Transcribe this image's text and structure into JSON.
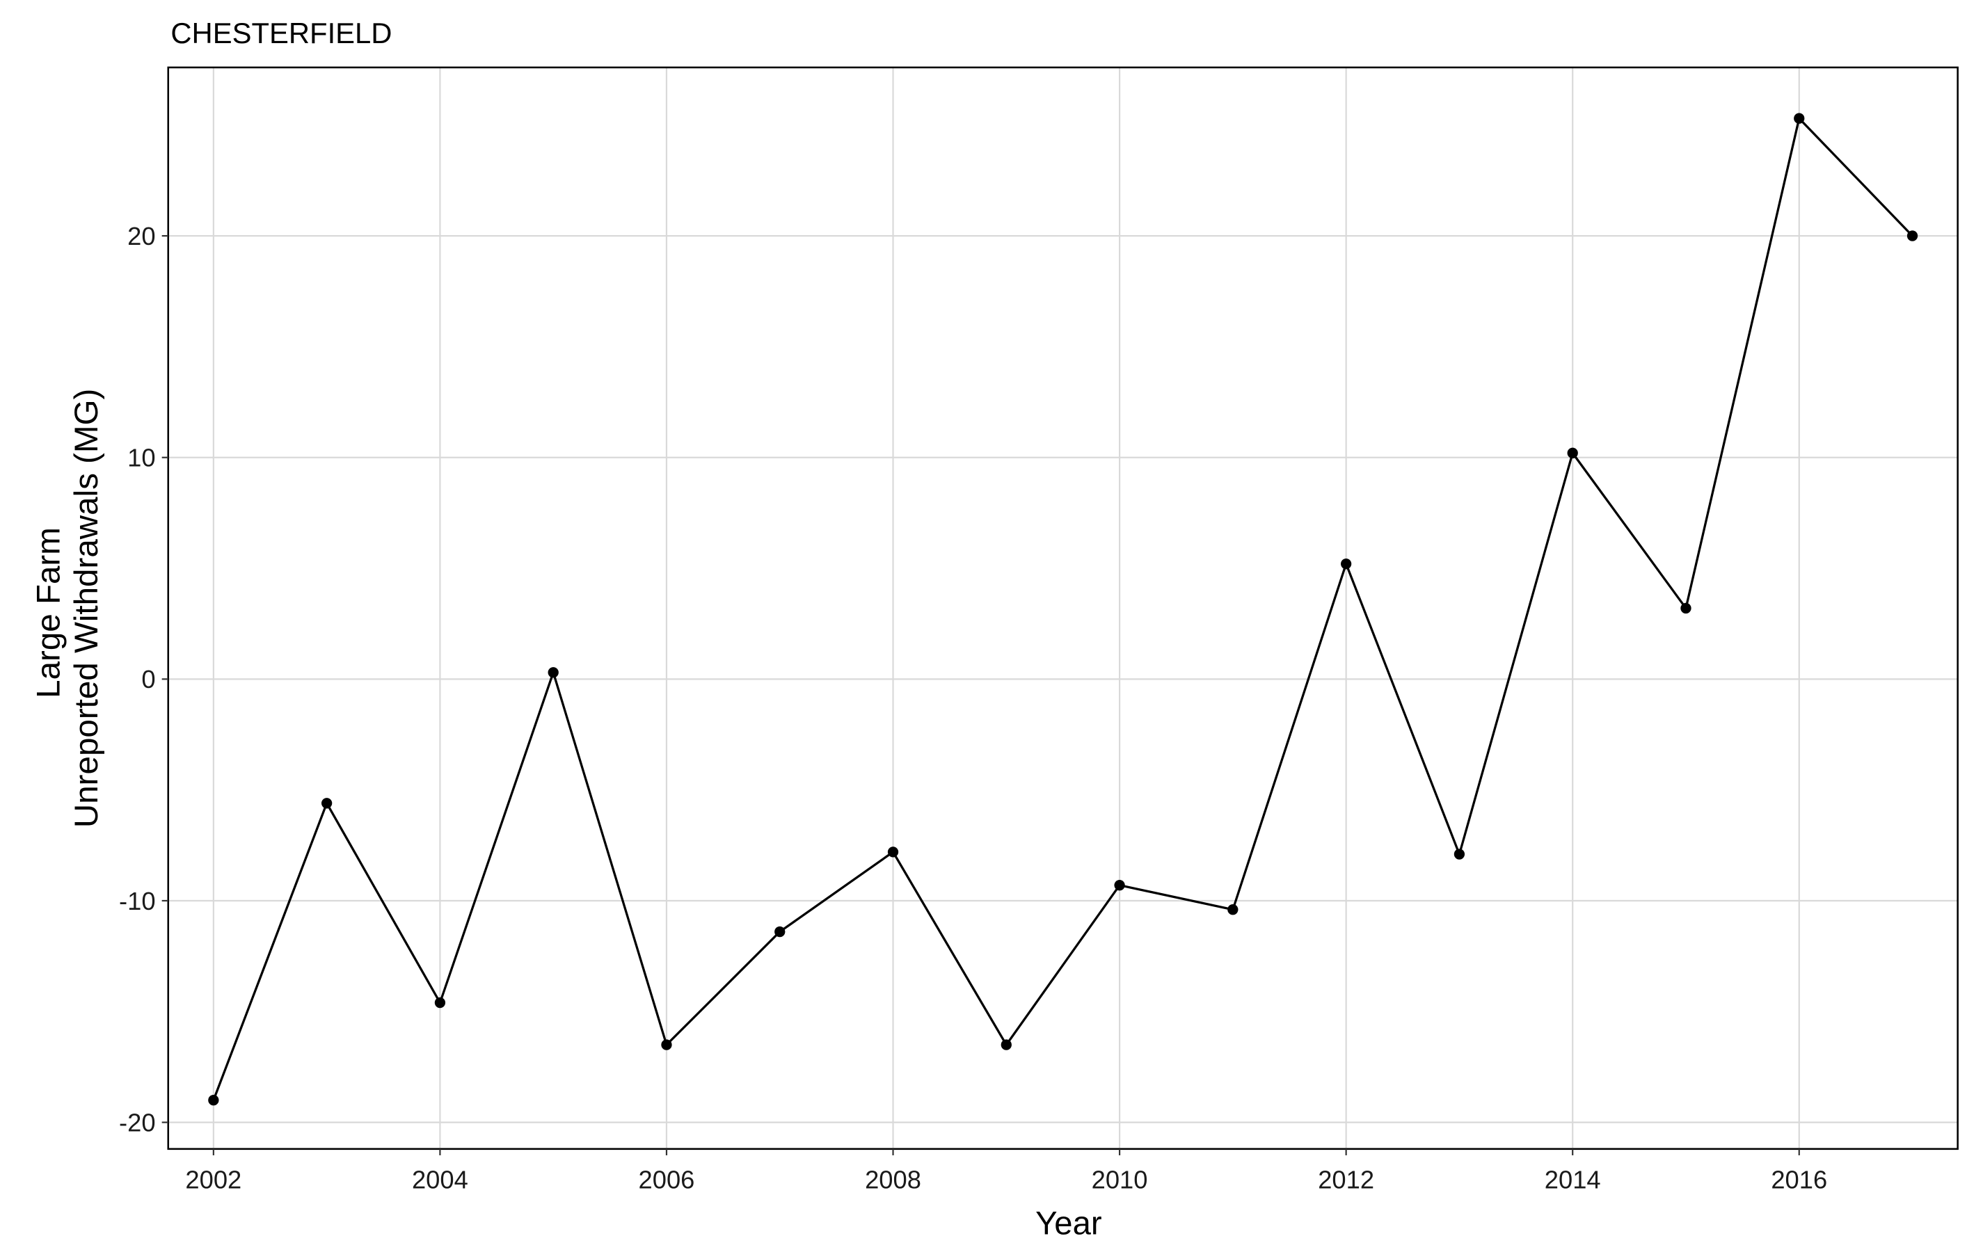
{
  "chart_data": {
    "type": "line",
    "title": "CHESTERFIELD",
    "xlabel": "Year",
    "ylabel": [
      "Large Farm",
      "Unreported Withdrawals (MG)"
    ],
    "xlim": [
      2001.6,
      2017.4
    ],
    "ylim": [
      -21.2,
      27.6
    ],
    "x_ticks": [
      2002,
      2004,
      2006,
      2008,
      2010,
      2012,
      2014,
      2016
    ],
    "y_ticks": [
      -20,
      -10,
      0,
      10,
      20
    ],
    "grid": true,
    "series": [
      {
        "x": [
          2002,
          2003,
          2004,
          2005,
          2006,
          2007,
          2008,
          2009,
          2010,
          2011,
          2012,
          2013,
          2014,
          2015,
          2016,
          2017
        ],
        "y": [
          -19.0,
          -5.6,
          -14.6,
          0.3,
          -16.5,
          -11.4,
          -7.8,
          -16.5,
          -9.3,
          -10.4,
          5.2,
          -7.9,
          10.2,
          3.2,
          25.3,
          20.0
        ]
      }
    ]
  }
}
